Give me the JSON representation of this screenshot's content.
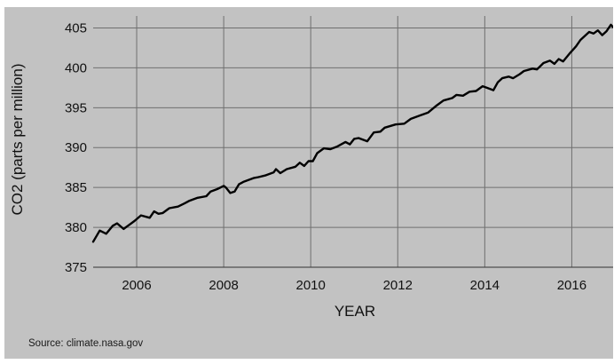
{
  "chart_data": {
    "type": "line",
    "xlabel": "YEAR",
    "ylabel": "CO2 (parts per million)",
    "source": "Source: climate.nasa.gov",
    "xlim": [
      2005.0,
      2016.95
    ],
    "ylim": [
      375,
      406.5
    ],
    "x_ticks": [
      2006,
      2008,
      2010,
      2012,
      2014,
      2016
    ],
    "y_ticks": [
      375,
      380,
      385,
      390,
      395,
      400,
      405
    ],
    "grid": true,
    "series": [
      {
        "x": [
          2005.0,
          2005.15,
          2005.3,
          2005.45,
          2005.55,
          2005.7,
          2005.8,
          2005.95,
          2006.1,
          2006.3,
          2006.4,
          2006.5,
          2006.6,
          2006.75,
          2006.95,
          2007.1,
          2007.2,
          2007.4,
          2007.6,
          2007.7,
          2007.85,
          2008.0,
          2008.05,
          2008.15,
          2008.25,
          2008.35,
          2008.45,
          2008.7,
          2008.8,
          2008.95,
          2009.15,
          2009.2,
          2009.3,
          2009.45,
          2009.65,
          2009.75,
          2009.85,
          2009.95,
          2010.05,
          2010.15,
          2010.3,
          2010.45,
          2010.6,
          2010.8,
          2010.9,
          2011.0,
          2011.1,
          2011.3,
          2011.45,
          2011.6,
          2011.7,
          2011.95,
          2012.15,
          2012.3,
          2012.5,
          2012.7,
          2012.9,
          2013.05,
          2013.25,
          2013.35,
          2013.5,
          2013.65,
          2013.8,
          2013.95,
          2014.05,
          2014.2,
          2014.3,
          2014.4,
          2014.55,
          2014.65,
          2014.8,
          2014.9,
          2015.1,
          2015.2,
          2015.35,
          2015.5,
          2015.6,
          2015.7,
          2015.8,
          2015.95,
          2016.05,
          2016.1,
          2016.2,
          2016.3,
          2016.4,
          2016.5,
          2016.6,
          2016.7,
          2016.8,
          2016.9,
          2016.95
        ],
        "y": [
          378.2,
          379.6,
          379.2,
          380.2,
          380.5,
          379.8,
          380.2,
          380.8,
          381.5,
          381.2,
          382.0,
          381.7,
          381.8,
          382.4,
          382.6,
          383.0,
          383.3,
          383.7,
          383.9,
          384.5,
          384.8,
          385.2,
          385.0,
          384.3,
          384.5,
          385.4,
          385.7,
          386.2,
          386.3,
          386.5,
          386.9,
          387.3,
          386.8,
          387.3,
          387.6,
          388.1,
          387.7,
          388.3,
          388.3,
          389.3,
          389.9,
          389.8,
          390.1,
          390.7,
          390.4,
          391.1,
          391.2,
          390.8,
          391.9,
          392.0,
          392.5,
          392.9,
          393.0,
          393.6,
          394.0,
          394.4,
          395.3,
          395.9,
          396.2,
          396.6,
          396.5,
          397.0,
          397.1,
          397.7,
          397.5,
          397.2,
          398.2,
          398.7,
          398.9,
          398.7,
          399.2,
          399.6,
          399.9,
          399.8,
          400.6,
          400.9,
          400.5,
          401.1,
          400.8,
          401.8,
          402.4,
          402.7,
          403.5,
          404.0,
          404.5,
          404.3,
          404.7,
          404.1,
          404.6,
          405.4,
          405.1
        ]
      }
    ]
  }
}
